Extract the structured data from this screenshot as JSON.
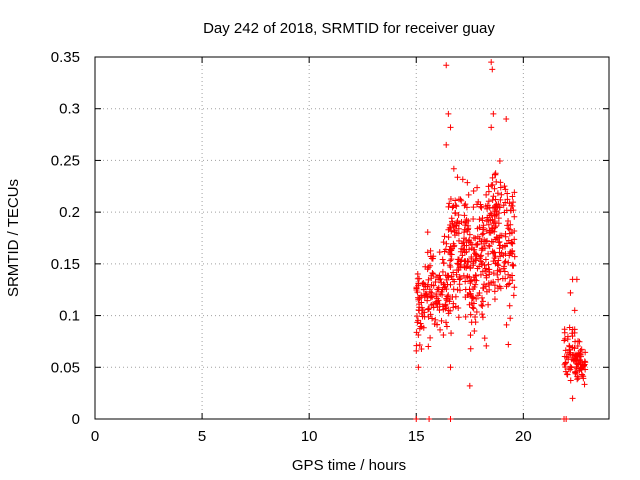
{
  "chart_data": {
    "type": "scatter",
    "title": "Day 242 of 2018, SRMTID for receiver guay",
    "xlabel": "GPS time / hours",
    "ylabel": "SRMTID / TECUs",
    "xlim": [
      0,
      24
    ],
    "ylim": [
      0,
      0.35
    ],
    "xticks": [
      0,
      5,
      10,
      15,
      20
    ],
    "yticks": [
      0,
      0.05,
      0.1,
      0.15,
      0.2,
      0.25,
      0.3,
      0.35
    ],
    "xtick_labels": [
      "0",
      "5",
      "10",
      "15",
      "20"
    ],
    "ytick_labels": [
      "0",
      "0.05",
      "0.1",
      "0.15",
      "0.2",
      "0.25",
      "0.3",
      "0.35"
    ],
    "grid": true,
    "marker": "+",
    "marker_color": "#ff0000",
    "series": [
      {
        "clusters": [
          {
            "x_range": [
              15.0,
              15.4
            ],
            "y_range": [
              0.05,
              0.17
            ],
            "count": 45
          },
          {
            "x_range": [
              15.4,
              16.5
            ],
            "y_range": [
              0.06,
              0.19
            ],
            "count": 110
          },
          {
            "x_range": [
              16.5,
              17.5
            ],
            "y_range": [
              0.06,
              0.27
            ],
            "count": 150
          },
          {
            "x_range": [
              17.5,
              18.3
            ],
            "y_range": [
              0.05,
              0.25
            ],
            "count": 120
          },
          {
            "x_range": [
              18.3,
              19.0
            ],
            "y_range": [
              0.09,
              0.28
            ],
            "count": 120
          },
          {
            "x_range": [
              19.0,
              19.6
            ],
            "y_range": [
              0.07,
              0.26
            ],
            "count": 70
          },
          {
            "x_range": [
              21.9,
              22.4
            ],
            "y_range": [
              0.03,
              0.1
            ],
            "count": 45
          },
          {
            "x_range": [
              22.4,
              22.9
            ],
            "y_range": [
              0.025,
              0.08
            ],
            "count": 60
          }
        ],
        "points": [
          [
            16.4,
            0.342
          ],
          [
            18.5,
            0.345
          ],
          [
            18.55,
            0.338
          ],
          [
            16.5,
            0.295
          ],
          [
            18.6,
            0.295
          ],
          [
            19.2,
            0.29
          ],
          [
            16.6,
            0.282
          ],
          [
            18.5,
            0.282
          ],
          [
            16.4,
            0.265
          ],
          [
            17.5,
            0.032
          ],
          [
            16.6,
            0.05
          ],
          [
            15.1,
            0.05
          ],
          [
            19.3,
            0.072
          ],
          [
            22.3,
            0.135
          ],
          [
            22.5,
            0.135
          ],
          [
            22.2,
            0.122
          ],
          [
            22.4,
            0.105
          ],
          [
            22.3,
            0.02
          ]
        ],
        "zero_points": [
          [
            15.0,
            0
          ],
          [
            15.6,
            0
          ],
          [
            16.6,
            0
          ],
          [
            21.9,
            0
          ],
          [
            22.0,
            0
          ]
        ]
      }
    ]
  }
}
